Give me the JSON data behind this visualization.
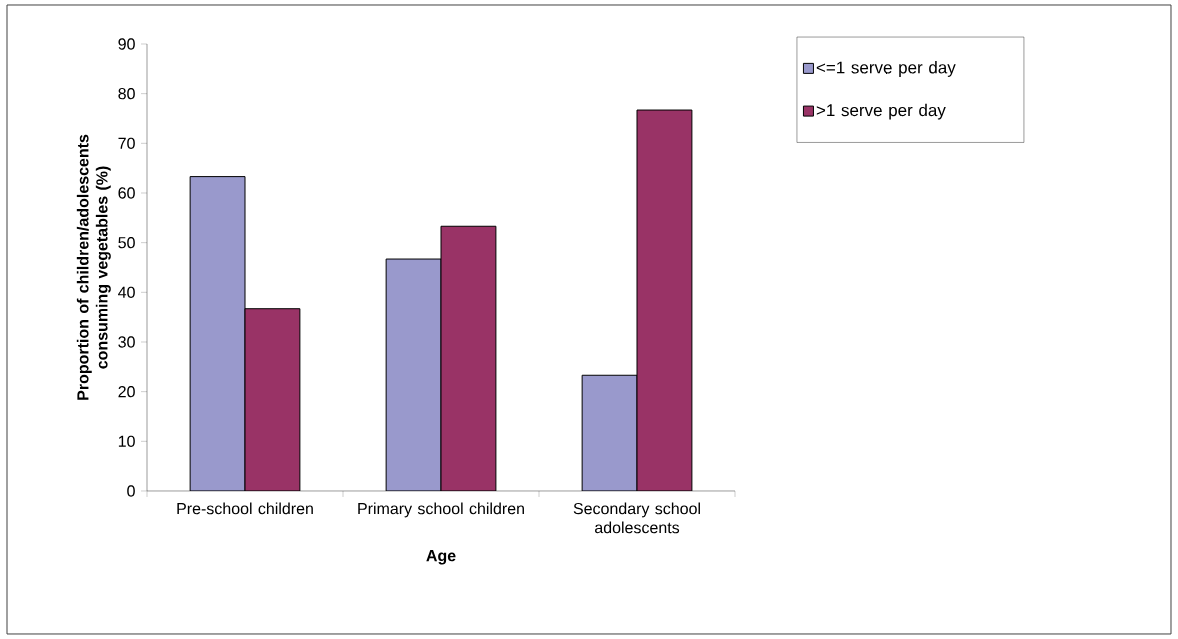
{
  "chart_data": {
    "type": "bar",
    "xlabel": "Age",
    "ylabel": "Proportion of children/adolescents consuming vegetables (%)",
    "categories": [
      "Pre-school children",
      "Primary school children",
      "Secondary school adolescents"
    ],
    "series": [
      {
        "name": "<=1 serve per day",
        "color": "#9999cc",
        "values": [
          63.3,
          46.7,
          23.3
        ]
      },
      {
        "name": ">1 serve per day",
        "color": "#993366",
        "values": [
          36.7,
          53.3,
          76.7
        ]
      }
    ],
    "ylim": [
      0,
      90
    ],
    "yticks": [
      0,
      10,
      20,
      30,
      40,
      50,
      60,
      70,
      80,
      90
    ],
    "legend": "top right"
  }
}
